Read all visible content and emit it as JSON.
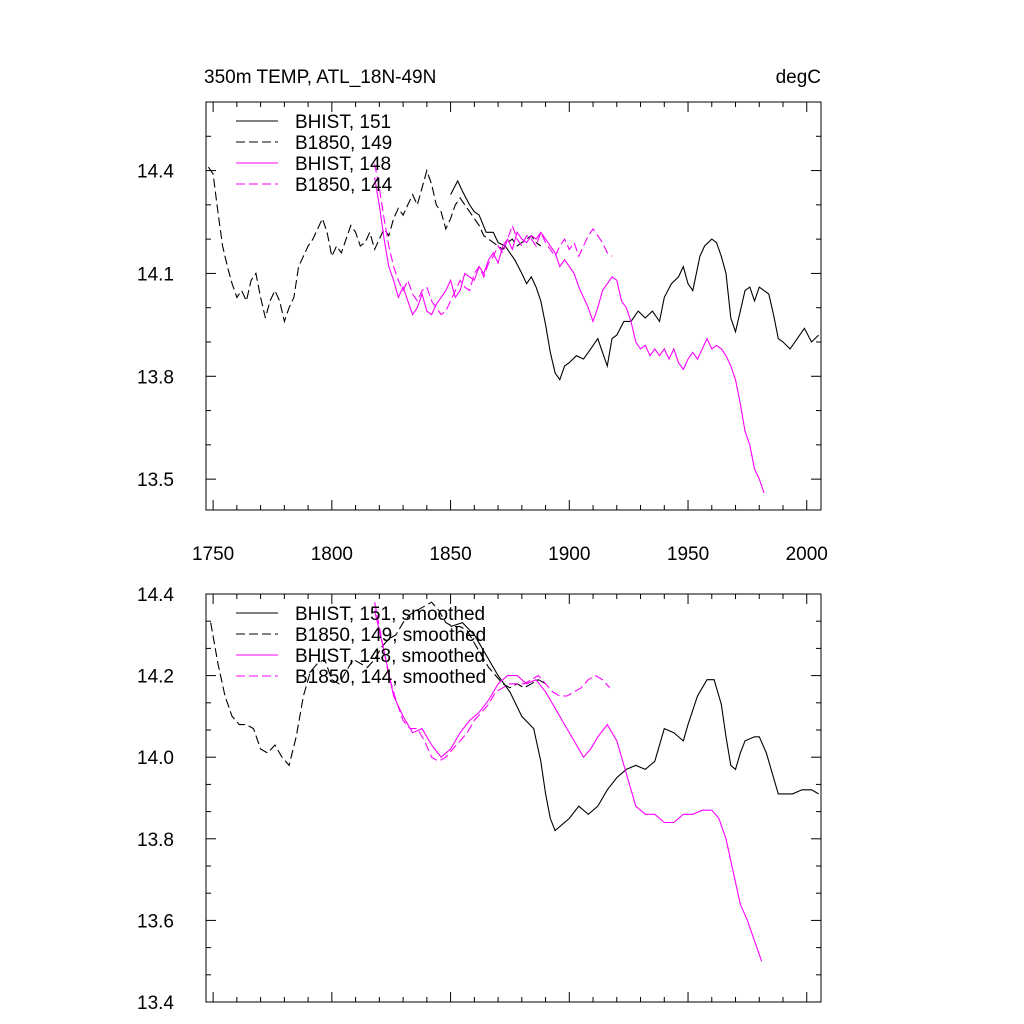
{
  "chart_data": [
    {
      "type": "line",
      "title": "350m TEMP, ATL_18N-49N",
      "units": "degC",
      "xlim": [
        1747,
        2006
      ],
      "ylim": [
        13.41,
        14.6
      ],
      "x_ticks": [
        1750,
        1800,
        1850,
        1900,
        1950,
        2000
      ],
      "y_ticks": [
        13.5,
        13.8,
        14.1,
        14.4
      ],
      "y_tick_labels": [
        "13.5",
        "13.8",
        "14.1",
        "14.4"
      ],
      "legend_placement": "top-left",
      "series": [
        {
          "name": "BHIST, 151",
          "color": "#000000",
          "dash": "solid",
          "x": [
            1850,
            1853,
            1855,
            1858,
            1860,
            1862,
            1865,
            1868,
            1870,
            1873,
            1875,
            1877,
            1880,
            1882,
            1884,
            1886,
            1888,
            1890,
            1892,
            1894,
            1896,
            1898,
            1900,
            1903,
            1906,
            1909,
            1912,
            1914,
            1916,
            1918,
            1920,
            1923,
            1926,
            1929,
            1932,
            1935,
            1938,
            1940,
            1943,
            1946,
            1948,
            1950,
            1952,
            1955,
            1957,
            1960,
            1962,
            1964,
            1966,
            1968,
            1970,
            1972,
            1974,
            1976,
            1978,
            1980,
            1982,
            1984,
            1986,
            1988,
            1990,
            1993,
            1996,
            1999,
            2002,
            2005
          ],
          "y": [
            14.33,
            14.37,
            14.34,
            14.3,
            14.28,
            14.27,
            14.22,
            14.22,
            14.19,
            14.18,
            14.16,
            14.14,
            14.1,
            14.07,
            14.09,
            14.06,
            14.02,
            13.95,
            13.87,
            13.81,
            13.79,
            13.83,
            13.84,
            13.86,
            13.85,
            13.88,
            13.91,
            13.87,
            13.83,
            13.91,
            13.92,
            13.96,
            13.96,
            13.99,
            13.97,
            13.99,
            13.96,
            14.03,
            14.07,
            14.09,
            14.12,
            14.07,
            14.05,
            14.15,
            14.18,
            14.2,
            14.19,
            14.15,
            14.1,
            13.97,
            13.93,
            13.99,
            14.05,
            14.06,
            14.02,
            14.06,
            14.05,
            14.04,
            13.98,
            13.91,
            13.9,
            13.88,
            13.91,
            13.94,
            13.9,
            13.92
          ]
        },
        {
          "name": "B1850, 149",
          "color": "#000000",
          "dash": "dashed",
          "x": [
            1748,
            1750,
            1752,
            1754,
            1756,
            1758,
            1760,
            1762,
            1764,
            1766,
            1768,
            1770,
            1772,
            1774,
            1776,
            1778,
            1780,
            1782,
            1784,
            1786,
            1788,
            1790,
            1792,
            1794,
            1796,
            1798,
            1800,
            1802,
            1804,
            1806,
            1808,
            1810,
            1812,
            1814,
            1816,
            1818,
            1820,
            1822,
            1824,
            1826,
            1828,
            1830,
            1832,
            1834,
            1836,
            1838,
            1840,
            1842,
            1844,
            1846,
            1848,
            1850,
            1852,
            1854,
            1856,
            1858,
            1860,
            1862,
            1864,
            1866,
            1868,
            1870,
            1872,
            1874,
            1876,
            1878,
            1880,
            1882,
            1884,
            1886,
            1888
          ],
          "y": [
            14.41,
            14.39,
            14.28,
            14.18,
            14.12,
            14.07,
            14.03,
            14.05,
            14.02,
            14.08,
            14.1,
            14.03,
            13.97,
            14.02,
            14.05,
            14.02,
            13.96,
            14.0,
            14.03,
            14.12,
            14.15,
            14.18,
            14.2,
            14.23,
            14.26,
            14.22,
            14.15,
            14.18,
            14.16,
            14.2,
            14.24,
            14.22,
            14.18,
            14.19,
            14.22,
            14.17,
            14.2,
            14.23,
            14.21,
            14.26,
            14.29,
            14.27,
            14.3,
            14.33,
            14.3,
            14.35,
            14.4,
            14.36,
            14.3,
            14.28,
            14.23,
            14.26,
            14.3,
            14.32,
            14.3,
            14.28,
            14.26,
            14.24,
            14.21,
            14.2,
            14.19,
            14.18,
            14.17,
            14.19,
            14.2,
            14.18,
            14.19,
            14.2,
            14.21,
            14.19,
            14.18
          ]
        },
        {
          "name": "BHIST, 148",
          "color": "#ff00ff",
          "dash": "solid",
          "x": [
            1818,
            1820,
            1822,
            1824,
            1826,
            1828,
            1830,
            1832,
            1834,
            1836,
            1838,
            1840,
            1842,
            1844,
            1846,
            1848,
            1850,
            1852,
            1854,
            1856,
            1858,
            1860,
            1862,
            1864,
            1866,
            1868,
            1870,
            1872,
            1874,
            1876,
            1878,
            1880,
            1882,
            1884,
            1886,
            1888,
            1890,
            1892,
            1894,
            1896,
            1898,
            1900,
            1902,
            1904,
            1906,
            1908,
            1910,
            1912,
            1914,
            1916,
            1918,
            1920,
            1922,
            1924,
            1926,
            1928,
            1930,
            1932,
            1934,
            1936,
            1938,
            1940,
            1942,
            1944,
            1946,
            1948,
            1950,
            1952,
            1954,
            1956,
            1958,
            1960,
            1962,
            1964,
            1966,
            1968,
            1970,
            1972,
            1974,
            1976,
            1978,
            1980,
            1982
          ],
          "y": [
            14.38,
            14.3,
            14.2,
            14.12,
            14.08,
            14.03,
            14.06,
            14.02,
            13.98,
            14.0,
            14.04,
            13.99,
            13.98,
            14.01,
            14.03,
            14.05,
            14.08,
            14.03,
            14.05,
            14.1,
            14.09,
            14.08,
            14.12,
            14.1,
            14.14,
            14.16,
            14.13,
            14.18,
            14.2,
            14.17,
            14.22,
            14.2,
            14.19,
            14.21,
            14.2,
            14.22,
            14.2,
            14.18,
            14.16,
            14.12,
            14.14,
            14.12,
            14.1,
            14.06,
            14.03,
            14.0,
            13.96,
            14.0,
            14.05,
            14.07,
            14.09,
            14.08,
            14.02,
            14.0,
            13.96,
            13.9,
            13.88,
            13.89,
            13.86,
            13.88,
            13.86,
            13.88,
            13.85,
            13.88,
            13.84,
            13.82,
            13.85,
            13.87,
            13.85,
            13.88,
            13.91,
            13.88,
            13.89,
            13.88,
            13.86,
            13.83,
            13.79,
            13.72,
            13.64,
            13.6,
            13.53,
            13.5,
            13.46
          ]
        },
        {
          "name": "B1850, 144",
          "color": "#ff00ff",
          "dash": "dashed",
          "x": [
            1818,
            1820,
            1822,
            1824,
            1826,
            1828,
            1830,
            1832,
            1834,
            1836,
            1838,
            1840,
            1842,
            1844,
            1846,
            1848,
            1850,
            1852,
            1854,
            1856,
            1858,
            1860,
            1862,
            1864,
            1866,
            1868,
            1870,
            1872,
            1874,
            1876,
            1878,
            1880,
            1882,
            1884,
            1886,
            1888,
            1890,
            1892,
            1894,
            1896,
            1898,
            1900,
            1902,
            1904,
            1906,
            1908,
            1910,
            1912,
            1914,
            1916,
            1918
          ],
          "y": [
            14.42,
            14.35,
            14.26,
            14.18,
            14.12,
            14.08,
            14.05,
            14.08,
            14.04,
            14.02,
            14.05,
            14.06,
            14.02,
            14.0,
            13.98,
            13.99,
            14.02,
            14.05,
            14.08,
            14.06,
            14.05,
            14.1,
            14.12,
            14.09,
            14.13,
            14.15,
            14.18,
            14.16,
            14.2,
            14.24,
            14.2,
            14.18,
            14.21,
            14.2,
            14.18,
            14.22,
            14.19,
            14.17,
            14.15,
            14.18,
            14.2,
            14.17,
            14.19,
            14.15,
            14.18,
            14.21,
            14.23,
            14.21,
            14.19,
            14.16,
            14.15
          ]
        }
      ]
    },
    {
      "type": "line",
      "title": "",
      "xlim": [
        1747,
        2006
      ],
      "ylim": [
        13.4,
        14.4
      ],
      "x_ticks": [
        1750,
        1800,
        1850,
        1900,
        1950,
        2000
      ],
      "y_ticks": [
        13.4,
        13.6,
        13.8,
        14.0,
        14.2,
        14.4
      ],
      "y_tick_labels": [
        "13.4",
        "13.6",
        "13.8",
        "14.0",
        "14.2",
        "14.4"
      ],
      "legend_placement": "top-left",
      "series": [
        {
          "name": "BHIST, 151, smoothed",
          "color": "#000000",
          "dash": "solid",
          "x": [
            1850,
            1855,
            1860,
            1865,
            1870,
            1875,
            1880,
            1885,
            1888,
            1890,
            1892,
            1894,
            1896,
            1900,
            1904,
            1908,
            1912,
            1916,
            1920,
            1924,
            1928,
            1932,
            1936,
            1940,
            1944,
            1948,
            1950,
            1954,
            1958,
            1961,
            1964,
            1966,
            1968,
            1970,
            1972,
            1974,
            1978,
            1980,
            1983,
            1986,
            1988,
            1990,
            1994,
            1998,
            2002,
            2005
          ],
          "y": [
            14.32,
            14.33,
            14.3,
            14.25,
            14.2,
            14.16,
            14.1,
            14.07,
            13.99,
            13.91,
            13.85,
            13.82,
            13.83,
            13.85,
            13.88,
            13.86,
            13.88,
            13.92,
            13.95,
            13.97,
            13.98,
            13.97,
            13.99,
            14.07,
            14.06,
            14.04,
            14.08,
            14.15,
            14.19,
            14.19,
            14.13,
            14.05,
            13.98,
            13.97,
            14.01,
            14.04,
            14.05,
            14.05,
            14.01,
            13.95,
            13.91,
            13.91,
            13.91,
            13.92,
            13.92,
            13.91
          ]
        },
        {
          "name": "B1850, 149, smoothed",
          "color": "#000000",
          "dash": "dashed",
          "x": [
            1749,
            1752,
            1755,
            1758,
            1761,
            1764,
            1767,
            1770,
            1773,
            1776,
            1779,
            1782,
            1785,
            1788,
            1791,
            1794,
            1797,
            1800,
            1803,
            1806,
            1809,
            1812,
            1815,
            1818,
            1821,
            1824,
            1827,
            1830,
            1833,
            1836,
            1839,
            1842,
            1845,
            1848,
            1851,
            1854,
            1857,
            1860,
            1863,
            1866,
            1869,
            1872,
            1875,
            1878,
            1881,
            1884,
            1887,
            1890
          ],
          "y": [
            14.33,
            14.23,
            14.15,
            14.1,
            14.08,
            14.08,
            14.07,
            14.02,
            14.01,
            14.03,
            14.0,
            13.98,
            14.05,
            14.15,
            14.21,
            14.23,
            14.24,
            14.19,
            14.18,
            14.21,
            14.24,
            14.23,
            14.22,
            14.24,
            14.27,
            14.29,
            14.3,
            14.33,
            14.35,
            14.36,
            14.37,
            14.38,
            14.36,
            14.33,
            14.32,
            14.32,
            14.31,
            14.28,
            14.25,
            14.22,
            14.2,
            14.18,
            14.17,
            14.18,
            14.17,
            14.18,
            14.19,
            14.18
          ]
        },
        {
          "name": "BHIST, 148, smoothed",
          "color": "#ff00ff",
          "dash": "solid",
          "x": [
            1818,
            1822,
            1826,
            1830,
            1834,
            1838,
            1842,
            1846,
            1850,
            1854,
            1858,
            1862,
            1866,
            1870,
            1874,
            1878,
            1882,
            1886,
            1890,
            1894,
            1898,
            1902,
            1906,
            1909,
            1912,
            1916,
            1920,
            1924,
            1928,
            1932,
            1936,
            1940,
            1944,
            1948,
            1952,
            1956,
            1960,
            1963,
            1966,
            1969,
            1972,
            1975,
            1978,
            1981
          ],
          "y": [
            14.36,
            14.26,
            14.15,
            14.1,
            14.06,
            14.07,
            14.03,
            14.0,
            14.02,
            14.06,
            14.09,
            14.11,
            14.14,
            14.18,
            14.2,
            14.2,
            14.18,
            14.19,
            14.16,
            14.12,
            14.08,
            14.04,
            14.0,
            14.02,
            14.05,
            14.08,
            14.04,
            13.96,
            13.88,
            13.86,
            13.86,
            13.84,
            13.84,
            13.86,
            13.86,
            13.87,
            13.87,
            13.85,
            13.8,
            13.72,
            13.64,
            13.6,
            13.55,
            13.5
          ]
        },
        {
          "name": "B1850, 144, smoothed",
          "color": "#ff00ff",
          "dash": "dashed",
          "x": [
            1818,
            1821,
            1824,
            1827,
            1830,
            1833,
            1836,
            1839,
            1842,
            1845,
            1848,
            1851,
            1854,
            1857,
            1860,
            1863,
            1866,
            1869,
            1872,
            1875,
            1878,
            1881,
            1884,
            1887,
            1890,
            1893,
            1896,
            1899,
            1902,
            1905,
            1908,
            1911,
            1914,
            1917
          ],
          "y": [
            14.38,
            14.29,
            14.2,
            14.14,
            14.09,
            14.07,
            14.07,
            14.04,
            14.0,
            13.99,
            14.0,
            14.02,
            14.04,
            14.06,
            14.09,
            14.11,
            14.13,
            14.16,
            14.17,
            14.18,
            14.18,
            14.18,
            14.19,
            14.2,
            14.18,
            14.16,
            14.15,
            14.15,
            14.16,
            14.17,
            14.19,
            14.2,
            14.19,
            14.17
          ]
        }
      ]
    }
  ]
}
